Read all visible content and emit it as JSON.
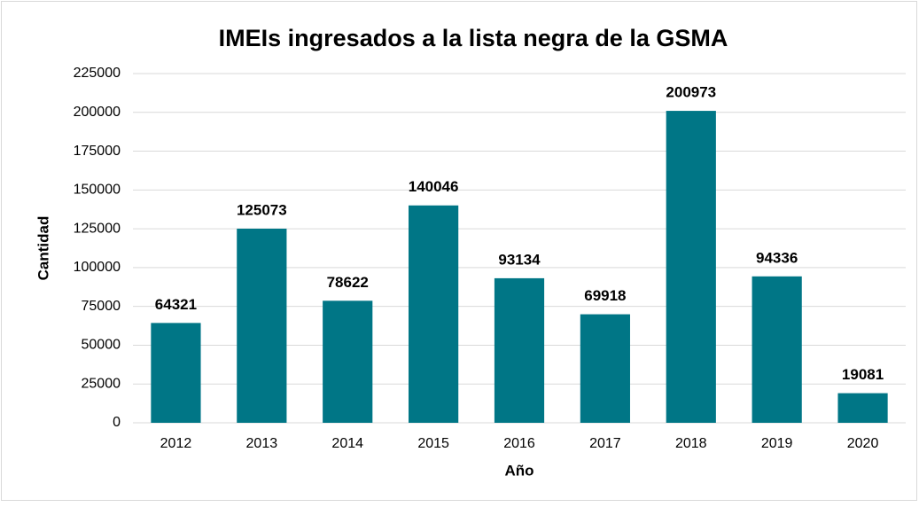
{
  "chart_data": {
    "type": "bar",
    "title": "IMEIs ingresados a la lista negra de la GSMA",
    "x_label": "Año",
    "y_label": "Cantidad",
    "categories": [
      "2012",
      "2013",
      "2014",
      "2015",
      "2016",
      "2017",
      "2018",
      "2019",
      "2020"
    ],
    "values": [
      64321,
      125073,
      78622,
      140046,
      93134,
      69918,
      200973,
      94336,
      19081
    ],
    "color": "#007686",
    "ylim": [
      0,
      225000
    ],
    "yticks": [
      0,
      25000,
      50000,
      75000,
      100000,
      125000,
      150000,
      175000,
      200000,
      225000
    ],
    "grid": true
  }
}
